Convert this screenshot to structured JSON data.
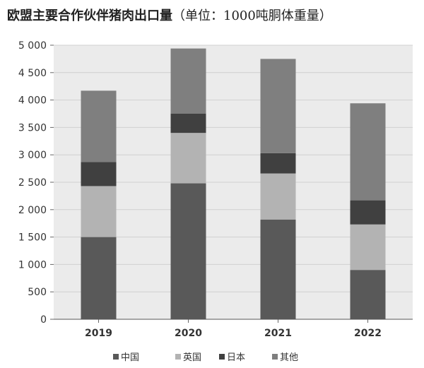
{
  "chart_data": {
    "type": "bar",
    "stacked": true,
    "title": "欧盟主要合作伙伴猪肉出口量",
    "unit": "（单位：1000吨胴体重量）",
    "categories": [
      "2019",
      "2020",
      "2021",
      "2022"
    ],
    "series": [
      {
        "name": "中国",
        "color": "#595959",
        "values": [
          1500,
          2480,
          1820,
          900
        ]
      },
      {
        "name": "英国",
        "color": "#b3b3b3",
        "values": [
          930,
          920,
          840,
          830
        ]
      },
      {
        "name": "日本",
        "color": "#404040",
        "values": [
          440,
          350,
          370,
          440
        ]
      },
      {
        "name": "其他",
        "color": "#7f7f7f",
        "values": [
          1300,
          1190,
          1720,
          1770
        ]
      }
    ],
    "yticks": [
      "0",
      "500",
      "1 000",
      "1 500",
      "2 000",
      "2 500",
      "3 000",
      "3 500",
      "4 000",
      "4 500",
      "5 000"
    ],
    "ylim": [
      0,
      5000
    ],
    "grid": true,
    "legend_position": "bottom"
  }
}
